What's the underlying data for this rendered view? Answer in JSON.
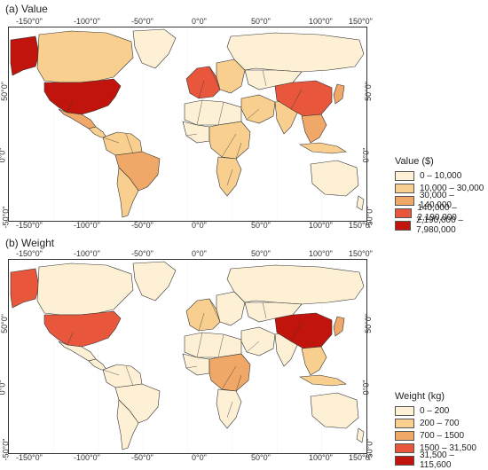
{
  "colors": {
    "ocean": "#ffffff",
    "border": "#333333",
    "c1": "#fdf0d5",
    "c2": "#f8cf8f",
    "c3": "#f0a868",
    "c4": "#e8573c",
    "c5": "#c0140c"
  },
  "panels": [
    {
      "title": "(a)  Value",
      "legend_title": "Value ($)",
      "legend": [
        "0 – 10,000",
        "10,000 – 30,000",
        "30,000 – 140,000",
        "140,000 – 2,190,000",
        "2,190,000 – 7,980,000"
      ],
      "top_ticks": [
        "-150°0\"",
        "-100°0\"",
        "-50°0\"",
        "0°0\"",
        "50°0\"",
        "100°0\"",
        "150°0\""
      ],
      "bottom_ticks": [
        "-150°0\"",
        "-100°0\"",
        "-50°0\"",
        "0°0\"",
        "50°0\"",
        "100°0\"",
        "150°0\""
      ],
      "left_ticks": [
        "50°0\"",
        "0°0\"",
        "-50°0\""
      ],
      "right_ticks": [
        "50°0\"",
        "0°0\"",
        "-50°0\""
      ],
      "regions": {
        "canada": "c2",
        "usa": "c5",
        "mexico": "c3",
        "central_am": "c2",
        "alaska": "c5",
        "greenland": "c1",
        "s_am_north": "c2",
        "brazil": "c3",
        "s_am_south": "c2",
        "europe_w": "c4",
        "europe_e": "c2",
        "russia": "c1",
        "n_africa": "c1",
        "w_africa": "c1",
        "c_africa": "c2",
        "s_africa": "c2",
        "middle_east": "c2",
        "c_asia": "c1",
        "india": "c2",
        "china": "c4",
        "se_asia": "c3",
        "japan": "c3",
        "indonesia": "c2",
        "australia": "c1",
        "nz": "c1"
      }
    },
    {
      "title": "(b)  Weight",
      "legend_title": "Weight (kg)",
      "legend": [
        "0 – 200",
        "200 – 700",
        "700 – 1500",
        "1500 – 31,500",
        "31,500 – 115,600"
      ],
      "top_ticks": [
        "-150°0\"",
        "-100°0\"",
        "-50°0\"",
        "0°0\"",
        "50°0\"",
        "100°0\"",
        "150°0\""
      ],
      "bottom_ticks": [
        "-150°0\"",
        "-100°0\"",
        "-50°0\"",
        "0°0\"",
        "50°0\"",
        "100°0\"",
        "150°0\""
      ],
      "left_ticks": [
        "50°0\"",
        "0°0\"",
        "-50°0\""
      ],
      "right_ticks": [
        "50°0\"",
        "0°0\"",
        "-50°0\""
      ],
      "regions": {
        "canada": "c1",
        "usa": "c4",
        "mexico": "c1",
        "central_am": "c1",
        "alaska": "c4",
        "greenland": "c1",
        "s_am_north": "c1",
        "brazil": "c1",
        "s_am_south": "c1",
        "europe_w": "c2",
        "europe_e": "c1",
        "russia": "c1",
        "n_africa": "c1",
        "w_africa": "c1",
        "c_africa": "c3",
        "s_africa": "c1",
        "middle_east": "c1",
        "c_asia": "c1",
        "india": "c1",
        "china": "c5",
        "se_asia": "c2",
        "japan": "c3",
        "indonesia": "c2",
        "australia": "c1",
        "nz": "c1"
      }
    }
  ]
}
